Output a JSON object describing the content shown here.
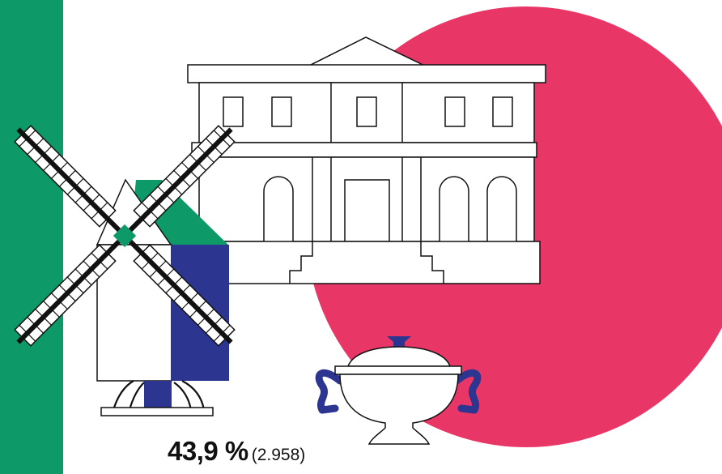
{
  "colors": {
    "green": "#0e9a68",
    "pink": "#e83767",
    "navy": "#2c3590",
    "ink": "#111111",
    "paper": "#ffffff"
  },
  "icons": [
    "windmill-icon",
    "manor-house-icon",
    "soup-tureen-icon"
  ],
  "stat": {
    "percentage": "43,9 %",
    "count": "(2.958)"
  }
}
